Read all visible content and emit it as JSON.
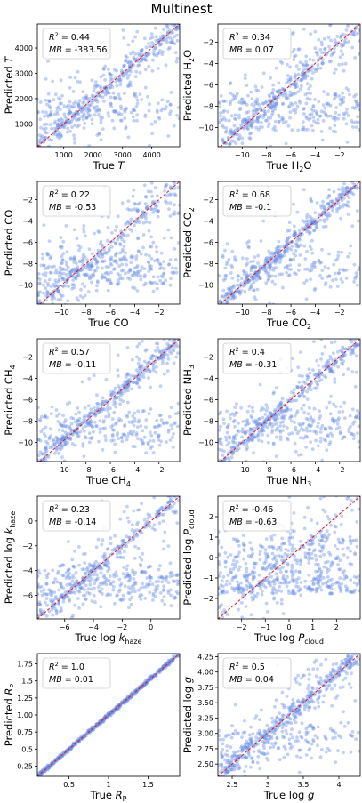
{
  "figure": {
    "title": "Multinest"
  },
  "chart_data": [
    {
      "type": "scatter",
      "ylabel_main": "Predicted ",
      "ylabel_sub": "",
      "ylabel_ital": "T",
      "xlabel_main": "True ",
      "xlabel_sub": "",
      "xlabel_ital": "T",
      "xlim": [
        100,
        4950
      ],
      "ylim": [
        100,
        4950
      ],
      "xticks": [
        1000,
        2000,
        3000,
        4000
      ],
      "yticks": [
        1000,
        2000,
        3000,
        4000
      ],
      "stats": {
        "r2": "0.44",
        "mb": "-383.56"
      },
      "points_pattern": {
        "tight": 0.35,
        "spread": 0.45,
        "floor": 0.25
      }
    },
    {
      "type": "scatter",
      "ylabel_main": "Predicted H",
      "ylabel_sub": "2",
      "ylabel_tail": "O",
      "xlabel_main": "True H",
      "xlabel_sub": "2",
      "xlabel_tail": "O",
      "xlim": [
        -12,
        -0.3
      ],
      "ylim": [
        -11.8,
        -0.3
      ],
      "xticks": [
        -10,
        -8,
        -6,
        -4,
        -2
      ],
      "yticks": [
        -10,
        -8,
        -6,
        -4,
        -2
      ],
      "stats": {
        "r2": "0.34",
        "mb": "0.07"
      },
      "points_pattern": {
        "tight": 0.35,
        "spread": 0.3,
        "floor": 0.35
      }
    },
    {
      "type": "scatter",
      "ylabel_main": "Predicted CO",
      "ylabel_sub": "",
      "xlabel_main": "True CO",
      "xlabel_sub": "",
      "xlim": [
        -12,
        -0.3
      ],
      "ylim": [
        -11.8,
        -0.3
      ],
      "xticks": [
        -10,
        -8,
        -6,
        -4,
        -2
      ],
      "yticks": [
        -10,
        -8,
        -6,
        -4,
        -2
      ],
      "stats": {
        "r2": "0.22",
        "mb": "-0.53"
      },
      "points_pattern": {
        "tight": 0.25,
        "spread": 0.35,
        "floor": 0.4
      }
    },
    {
      "type": "scatter",
      "ylabel_main": "Predicted CO",
      "ylabel_sub": "2",
      "xlabel_main": "True CO",
      "xlabel_sub": "2",
      "xlim": [
        -12,
        -0.3
      ],
      "ylim": [
        -11.8,
        -0.3
      ],
      "xticks": [
        -10,
        -8,
        -6,
        -4,
        -2
      ],
      "yticks": [
        -10,
        -8,
        -6,
        -4,
        -2
      ],
      "stats": {
        "r2": "0.68",
        "mb": "-0.1"
      },
      "points_pattern": {
        "tight": 0.55,
        "spread": 0.2,
        "floor": 0.25
      }
    },
    {
      "type": "scatter",
      "ylabel_main": "Predicted CH",
      "ylabel_sub": "4",
      "xlabel_main": "True CH",
      "xlabel_sub": "4",
      "xlim": [
        -12,
        -0.3
      ],
      "ylim": [
        -11.8,
        -0.3
      ],
      "xticks": [
        -10,
        -8,
        -6,
        -4,
        -2
      ],
      "yticks": [
        -10,
        -8,
        -6,
        -4,
        -2
      ],
      "stats": {
        "r2": "0.57",
        "mb": "-0.11"
      },
      "points_pattern": {
        "tight": 0.5,
        "spread": 0.2,
        "floor": 0.3
      }
    },
    {
      "type": "scatter",
      "ylabel_main": "Predicted NH",
      "ylabel_sub": "3",
      "xlabel_main": "True NH",
      "xlabel_sub": "3",
      "xlim": [
        -12,
        -0.3
      ],
      "ylim": [
        -11.8,
        -0.3
      ],
      "xticks": [
        -10,
        -8,
        -6,
        -4,
        -2
      ],
      "yticks": [
        -10,
        -8,
        -6,
        -4,
        -2
      ],
      "stats": {
        "r2": "0.4",
        "mb": "-0.31"
      },
      "points_pattern": {
        "tight": 0.4,
        "spread": 0.25,
        "floor": 0.35
      }
    },
    {
      "type": "scatter",
      "ylabel_main": "Predicted log ",
      "ylabel_ital": "k",
      "ylabel_sub": "haze",
      "xlabel_main": "True log ",
      "xlabel_ital": "k",
      "xlabel_sub": "haze",
      "xlim": [
        -7.9,
        2.0
      ],
      "ylim": [
        -7.9,
        2.0
      ],
      "xticks": [
        -6,
        -4,
        -2,
        0
      ],
      "yticks": [
        -6,
        -4,
        -2,
        0
      ],
      "stats": {
        "r2": "0.23",
        "mb": "-0.14"
      },
      "points_pattern": {
        "tight": 0.35,
        "spread": 0.25,
        "floor": 0.4
      }
    },
    {
      "type": "scatter",
      "ylabel_main": "Predicted log ",
      "ylabel_ital": "P",
      "ylabel_sub": "cloud",
      "xlabel_main": "True log ",
      "xlabel_ital": "P",
      "xlabel_sub": "cloud",
      "xlim": [
        -3.0,
        3.0
      ],
      "ylim": [
        -3.0,
        3.0
      ],
      "xticks": [
        -2,
        -1,
        0,
        1,
        2
      ],
      "yticks": [
        -2,
        -1,
        0,
        1,
        2
      ],
      "stats": {
        "r2": "-0.46",
        "mb": "-0.63"
      },
      "points_pattern": {
        "tight": 0.05,
        "spread": 0.35,
        "floor": 0.6
      }
    },
    {
      "type": "scatter",
      "ylabel_main": "Predicted ",
      "ylabel_ital": "R",
      "ylabel_sub": "P",
      "xlabel_main": "True ",
      "xlabel_ital": "R",
      "xlabel_sub": "P",
      "xlim": [
        0.1,
        1.9
      ],
      "ylim": [
        0.1,
        1.9
      ],
      "xticks": [
        0.5,
        1.0,
        1.5
      ],
      "yticks": [
        0.25,
        0.5,
        0.75,
        1.0,
        1.25,
        1.5,
        1.75
      ],
      "stats": {
        "r2": "1.0",
        "mb": "0.01"
      },
      "points_pattern": {
        "tight": 1.0,
        "spread": 0.0,
        "floor": 0.0
      }
    },
    {
      "type": "scatter",
      "ylabel_main": "Predicted log ",
      "ylabel_ital": "g",
      "ylabel_sub": "",
      "xlabel_main": "True log ",
      "xlabel_ital": "g",
      "xlabel_sub": "",
      "xlim": [
        2.3,
        4.3
      ],
      "ylim": [
        2.3,
        4.3
      ],
      "xticks": [
        2.5,
        3.0,
        3.5,
        4.0
      ],
      "yticks": [
        2.5,
        2.75,
        3.0,
        3.25,
        3.5,
        3.75,
        4.0,
        4.25
      ],
      "stats": {
        "r2": "0.5",
        "mb": "0.04"
      },
      "points_pattern": {
        "tight": 0.5,
        "spread": 0.3,
        "floor": 0.2
      }
    }
  ],
  "style": {
    "point_color": "#6b8fe6",
    "line_color": "#e8141c"
  }
}
